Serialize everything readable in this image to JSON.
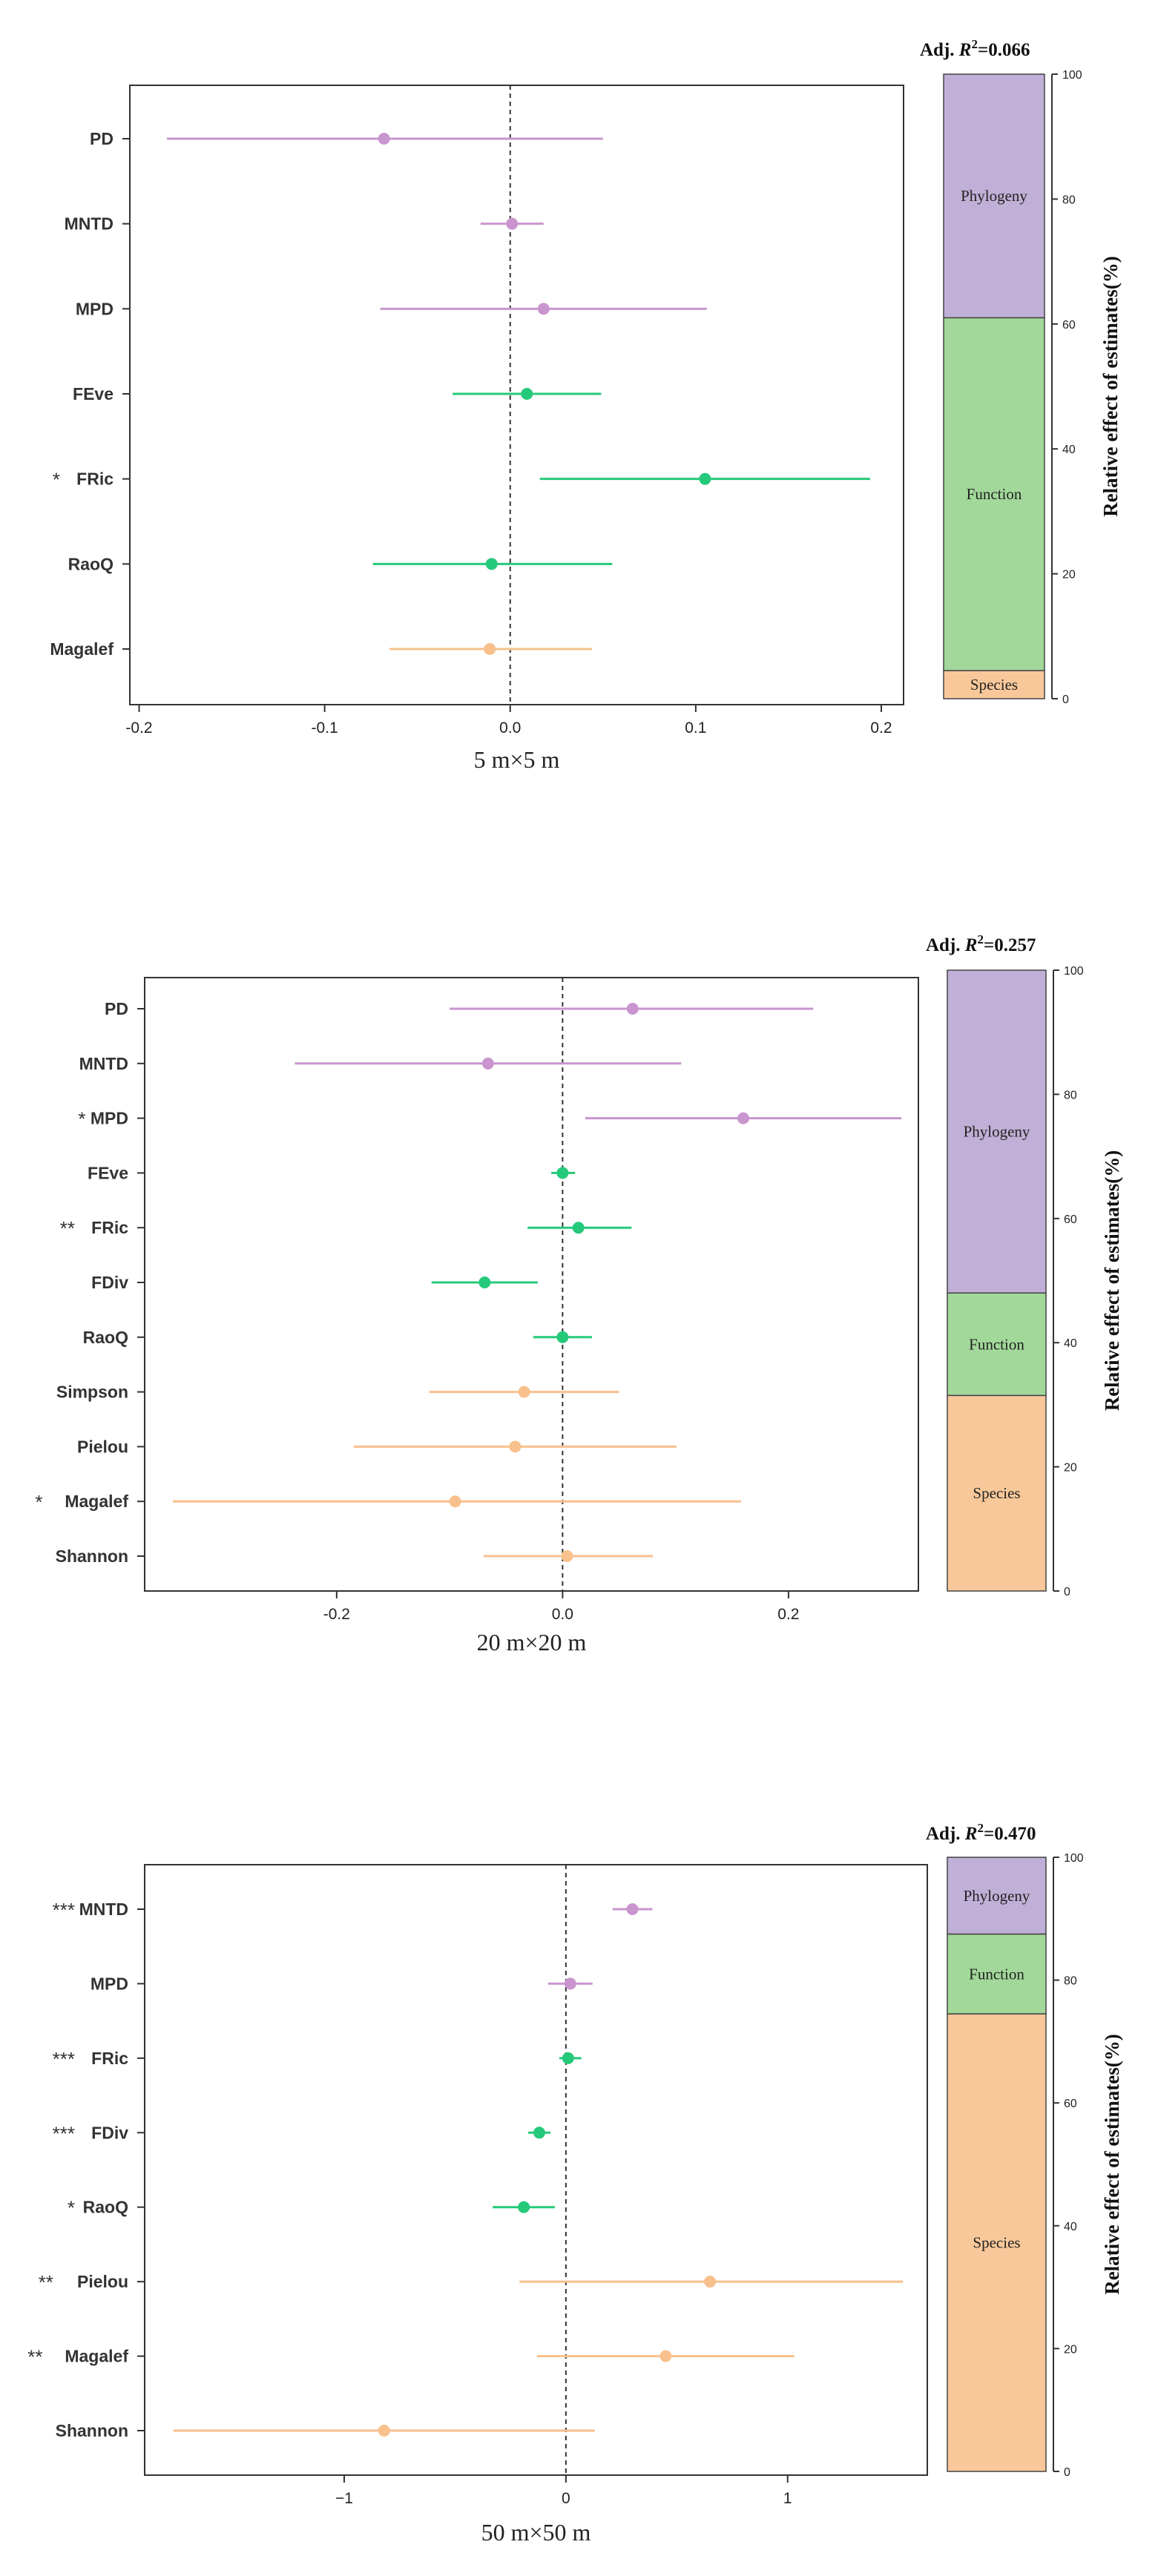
{
  "colors": {
    "phylogeny": "#c995cf",
    "function": "#25c97a",
    "species": "#f8c08c",
    "bar_phylogeny": "#c0afd6",
    "bar_function": "#a2d89a",
    "bar_species": "#f8c89a",
    "axis": "#333333",
    "zero_line": "#333333"
  },
  "bar_axis_label": "Relative effect of estimates(%)",
  "chart_data": [
    {
      "type": "forest",
      "xlabel": "5 m×5 m",
      "xlim": [
        -0.205,
        0.212
      ],
      "xticks": [
        -0.2,
        -0.1,
        0.0,
        0.1,
        0.2
      ],
      "xtick_labels": [
        "-0.2",
        "-0.1",
        "0.0",
        "0.1",
        "0.2"
      ],
      "grid": false,
      "rows": [
        {
          "label": "PD",
          "stars": "",
          "group": "phylogeny",
          "est": -0.068,
          "lo": -0.185,
          "hi": 0.05
        },
        {
          "label": "MNTD",
          "stars": "",
          "group": "phylogeny",
          "est": 0.001,
          "lo": -0.016,
          "hi": 0.018
        },
        {
          "label": "MPD",
          "stars": "",
          "group": "phylogeny",
          "est": 0.018,
          "lo": -0.07,
          "hi": 0.106
        },
        {
          "label": "FEve",
          "stars": "",
          "group": "function",
          "est": 0.009,
          "lo": -0.031,
          "hi": 0.049
        },
        {
          "label": "FRic",
          "stars": "*",
          "group": "function",
          "est": 0.105,
          "lo": 0.016,
          "hi": 0.194
        },
        {
          "label": "RaoQ",
          "stars": "",
          "group": "function",
          "est": -0.01,
          "lo": -0.074,
          "hi": 0.055
        },
        {
          "label": "Magalef",
          "stars": "",
          "group": "species",
          "est": -0.011,
          "lo": -0.065,
          "hi": 0.044
        }
      ],
      "bar": {
        "title_prefix": "Adj. ",
        "title_symbol": "R",
        "title_sup": "2",
        "title_value": "=0.066",
        "ylim": [
          0,
          100
        ],
        "yticks": [
          "0",
          "20",
          "40",
          "60",
          "80",
          "100"
        ],
        "segments": [
          {
            "name": "Species",
            "group": "species",
            "value": 4.5
          },
          {
            "name": "Function",
            "group": "function",
            "value": 56.5
          },
          {
            "name": "Phylogeny",
            "group": "phylogeny",
            "value": 39.0
          }
        ]
      }
    },
    {
      "type": "forest",
      "xlabel": "20 m×20 m",
      "xlim": [
        -0.37,
        0.315
      ],
      "xticks": [
        -0.2,
        0.0,
        0.2
      ],
      "xtick_labels": [
        "-0.2",
        "0.0",
        "0.2"
      ],
      "grid": false,
      "rows": [
        {
          "label": "PD",
          "stars": "",
          "group": "phylogeny",
          "est": 0.062,
          "lo": -0.1,
          "hi": 0.222
        },
        {
          "label": "MNTD",
          "stars": "",
          "group": "phylogeny",
          "est": -0.066,
          "lo": -0.237,
          "hi": 0.105
        },
        {
          "label": "MPD",
          "stars": "*",
          "group": "phylogeny",
          "est": 0.16,
          "lo": 0.02,
          "hi": 0.3
        },
        {
          "label": "FEve",
          "stars": "",
          "group": "function",
          "est": 0.0,
          "lo": -0.01,
          "hi": 0.011
        },
        {
          "label": "FRic",
          "stars": "**",
          "group": "function",
          "est": 0.014,
          "lo": -0.031,
          "hi": 0.061
        },
        {
          "label": "FDiv",
          "stars": "",
          "group": "function",
          "est": -0.069,
          "lo": -0.116,
          "hi": -0.022
        },
        {
          "label": "RaoQ",
          "stars": "",
          "group": "function",
          "est": 0.0,
          "lo": -0.026,
          "hi": 0.026
        },
        {
          "label": "Simpson",
          "stars": "",
          "group": "species",
          "est": -0.034,
          "lo": -0.118,
          "hi": 0.05
        },
        {
          "label": "Pielou",
          "stars": "",
          "group": "species",
          "est": -0.042,
          "lo": -0.185,
          "hi": 0.101
        },
        {
          "label": "Magalef",
          "stars": "*",
          "group": "species",
          "est": -0.095,
          "lo": -0.345,
          "hi": 0.158
        },
        {
          "label": "Shannon",
          "stars": "",
          "group": "species",
          "est": 0.004,
          "lo": -0.07,
          "hi": 0.08
        }
      ],
      "bar": {
        "title_prefix": "Adj. ",
        "title_symbol": "R",
        "title_sup": "2",
        "title_value": "=0.257",
        "ylim": [
          0,
          100
        ],
        "yticks": [
          "0",
          "20",
          "40",
          "60",
          "80",
          "100"
        ],
        "segments": [
          {
            "name": "Species",
            "group": "species",
            "value": 31.5
          },
          {
            "name": "Function",
            "group": "function",
            "value": 16.5
          },
          {
            "name": "Phylogeny",
            "group": "phylogeny",
            "value": 52.0
          }
        ]
      }
    },
    {
      "type": "forest",
      "xlabel": "50 m×50 m",
      "xlim": [
        -1.9,
        1.63
      ],
      "xticks": [
        -1,
        0,
        1
      ],
      "xtick_labels": [
        "−1",
        "0",
        "1"
      ],
      "grid": false,
      "rows": [
        {
          "label": "MNTD",
          "stars": "***",
          "group": "phylogeny",
          "est": 0.3,
          "lo": 0.21,
          "hi": 0.39
        },
        {
          "label": "MPD",
          "stars": "",
          "group": "phylogeny",
          "est": 0.02,
          "lo": -0.08,
          "hi": 0.12
        },
        {
          "label": "FRic",
          "stars": "***",
          "group": "function",
          "est": 0.01,
          "lo": -0.03,
          "hi": 0.07
        },
        {
          "label": "FDiv",
          "stars": "***",
          "group": "function",
          "est": -0.12,
          "lo": -0.17,
          "hi": -0.07
        },
        {
          "label": "RaoQ",
          "stars": "*",
          "group": "function",
          "est": -0.19,
          "lo": -0.33,
          "hi": -0.05
        },
        {
          "label": "Pielou",
          "stars": "**",
          "group": "species",
          "est": 0.65,
          "lo": -0.21,
          "hi": 1.52
        },
        {
          "label": "Magalef",
          "stars": "**",
          "group": "species",
          "est": 0.45,
          "lo": -0.13,
          "hi": 1.03
        },
        {
          "label": "Shannon",
          "stars": "",
          "group": "species",
          "est": -0.82,
          "lo": -1.77,
          "hi": 0.13
        }
      ],
      "bar": {
        "title_prefix": "Adj. ",
        "title_symbol": "R",
        "title_sup": "2",
        "title_value": "=0.470",
        "ylim": [
          0,
          100
        ],
        "yticks": [
          "0",
          "20",
          "40",
          "60",
          "80",
          "100"
        ],
        "segments": [
          {
            "name": "Species",
            "group": "species",
            "value": 74.5
          },
          {
            "name": "Function",
            "group": "function",
            "value": 13.0
          },
          {
            "name": "Phylogeny",
            "group": "phylogeny",
            "value": 12.5
          }
        ]
      }
    }
  ]
}
